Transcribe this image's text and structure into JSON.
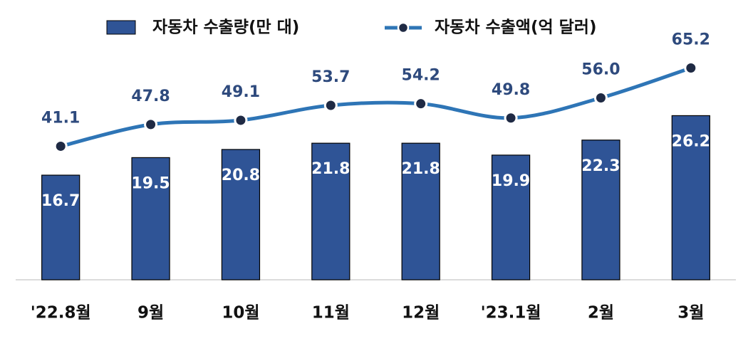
{
  "chart_data": {
    "type": "bar-line",
    "categories": [
      "'22.8월",
      "9월",
      "10월",
      "11월",
      "12월",
      "'23.1월",
      "2월",
      "3월"
    ],
    "series": [
      {
        "name": "자동차 수출량(만 대)",
        "color": "#2f5496",
        "type": "bar",
        "values": [
          16.7,
          19.5,
          20.8,
          21.8,
          21.8,
          19.9,
          22.3,
          26.2
        ]
      },
      {
        "name": "자동차 수출액(억 달러)",
        "color": "#2e75b6",
        "type": "line",
        "axis": "y2",
        "values": [
          41.1,
          47.8,
          49.1,
          53.7,
          54.2,
          49.8,
          56.0,
          65.2
        ],
        "value_labels": [
          "41.1",
          "47.8",
          "49.1",
          "53.7",
          "54.2",
          "49.8",
          "56.0",
          "65.2"
        ]
      }
    ],
    "ylim": [
      0,
      35
    ],
    "y2lim": [
      0,
      67.5
    ]
  }
}
